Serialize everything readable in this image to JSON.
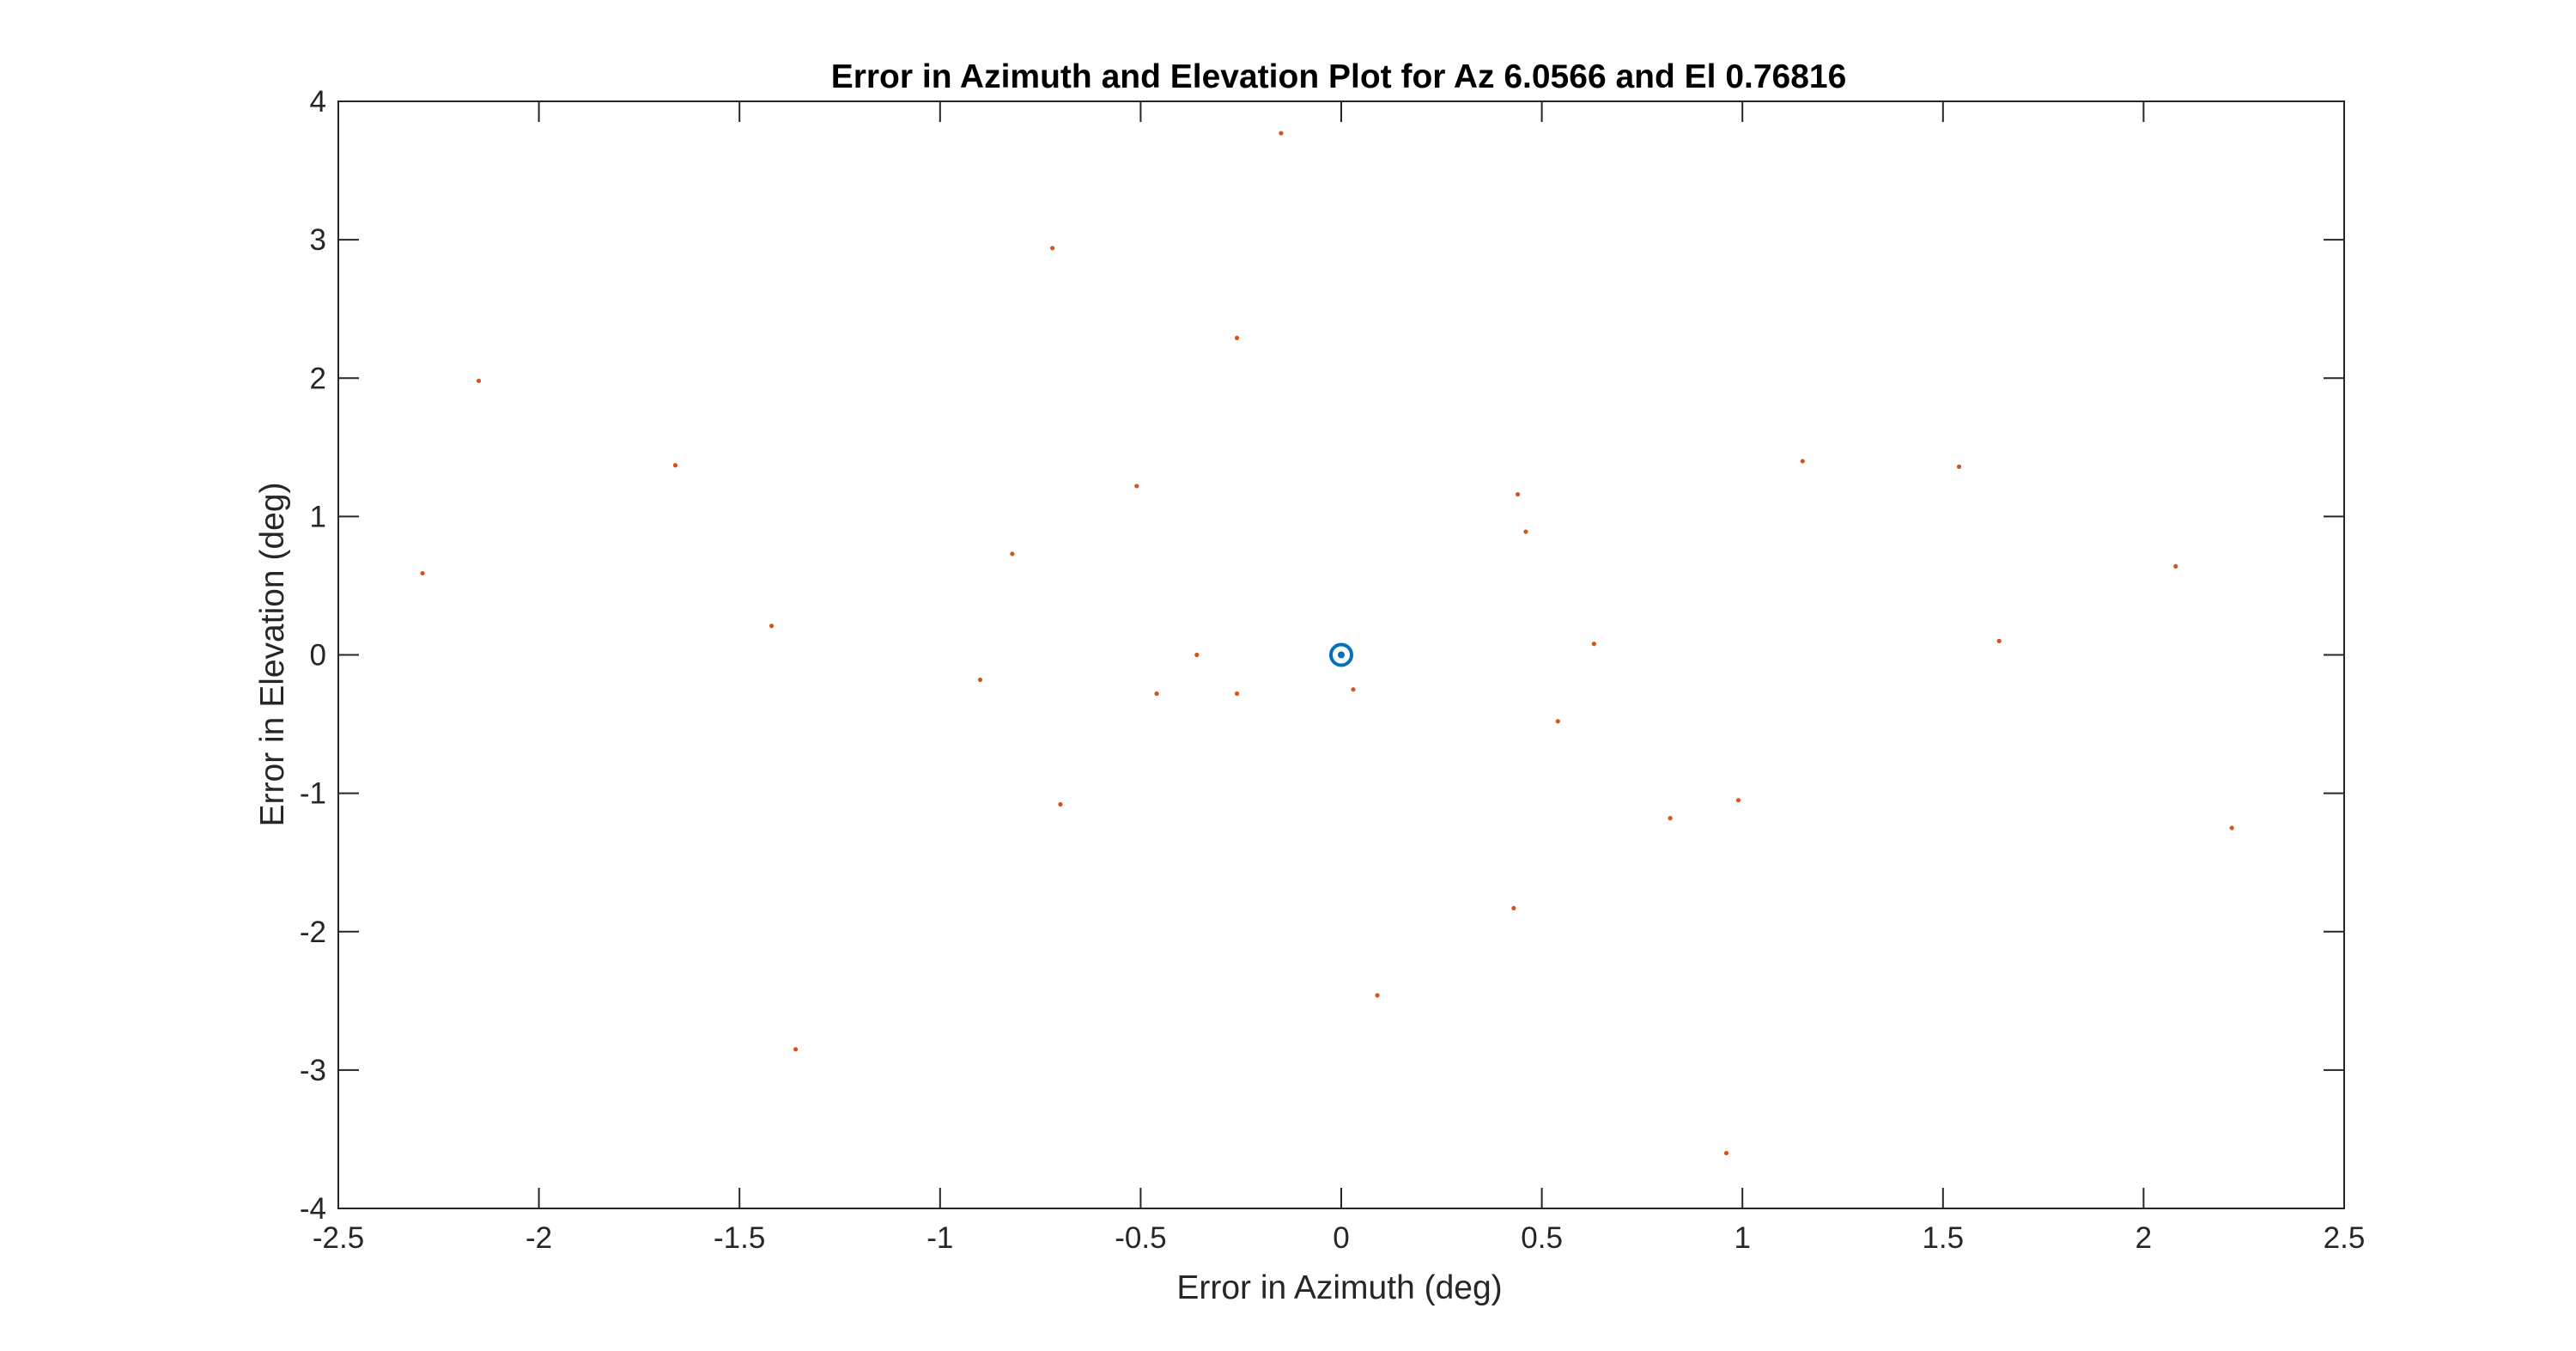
{
  "chart_data": {
    "type": "scatter",
    "title": "Error in Azimuth and Elevation Plot for Az 6.0566 and El 0.76816",
    "xlabel": "Error in Azimuth (deg)",
    "ylabel": "Error in Elevation (deg)",
    "xlim": [
      -2.5,
      2.5
    ],
    "ylim": [
      -4,
      4
    ],
    "xticks": [
      -2.5,
      -2,
      -1.5,
      -1,
      -0.5,
      0,
      0.5,
      1,
      1.5,
      2,
      2.5
    ],
    "yticks": [
      -4,
      -3,
      -2,
      -1,
      0,
      1,
      2,
      3,
      4
    ],
    "xtick_labels": [
      "-2.5",
      "-2",
      "-1.5",
      "-1",
      "-0.5",
      "0",
      "0.5",
      "1",
      "1.5",
      "2",
      "2.5"
    ],
    "ytick_labels": [
      "-4",
      "-3",
      "-2",
      "-1",
      "0",
      "1",
      "2",
      "3",
      "4"
    ],
    "grid": false,
    "box": true,
    "colors": {
      "axes": "#262626",
      "reference": "#0072BD",
      "samples": "#D95319"
    },
    "series": [
      {
        "marker": "circle",
        "color": "#0072BD",
        "points": [
          [
            0,
            0
          ]
        ]
      },
      {
        "marker": "point",
        "color": "#D95319",
        "points": [
          [
            -0.15,
            3.77
          ],
          [
            -0.72,
            2.94
          ],
          [
            -0.26,
            2.29
          ],
          [
            -2.15,
            1.98
          ],
          [
            -1.66,
            1.37
          ],
          [
            -0.51,
            1.22
          ],
          [
            -0.82,
            0.73
          ],
          [
            -2.29,
            0.59
          ],
          [
            -1.42,
            0.21
          ],
          [
            -0.36,
            0.0
          ],
          [
            -0.9,
            -0.18
          ],
          [
            -0.46,
            -0.28
          ],
          [
            -0.26,
            -0.28
          ],
          [
            0.03,
            -0.25
          ],
          [
            -0.7,
            -1.08
          ],
          [
            -1.36,
            -2.85
          ],
          [
            0.09,
            -2.46
          ],
          [
            0.43,
            -1.83
          ],
          [
            0.54,
            -0.48
          ],
          [
            0.63,
            0.08
          ],
          [
            0.44,
            1.16
          ],
          [
            0.46,
            0.89
          ],
          [
            0.82,
            -1.18
          ],
          [
            0.99,
            -1.05
          ],
          [
            0.96,
            -3.6
          ],
          [
            1.15,
            1.4
          ],
          [
            1.54,
            1.36
          ],
          [
            1.64,
            0.1
          ],
          [
            2.08,
            0.64
          ],
          [
            2.22,
            -1.25
          ]
        ]
      }
    ]
  }
}
